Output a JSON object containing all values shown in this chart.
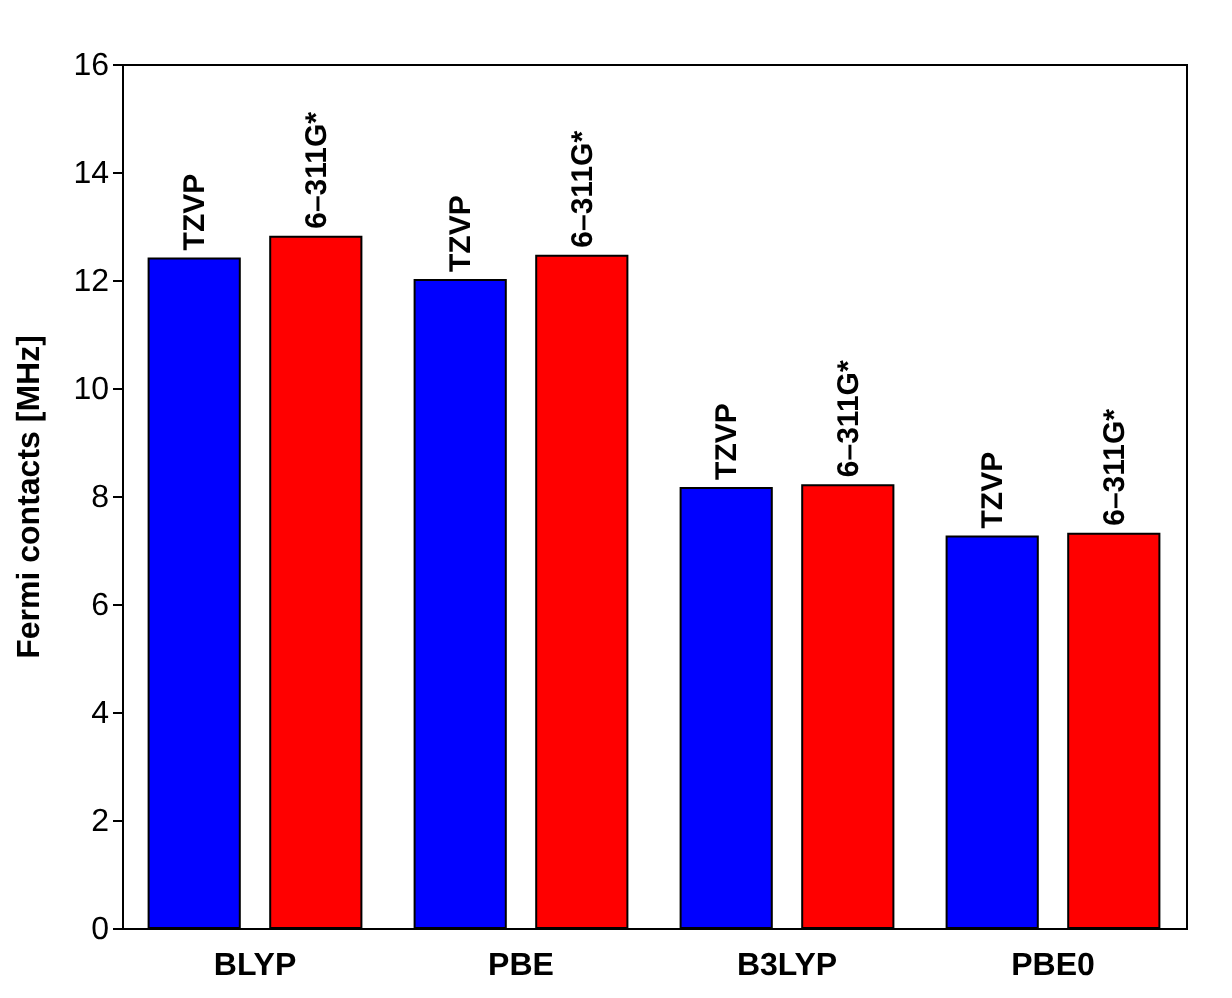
{
  "chart_data": {
    "type": "bar",
    "ylabel": "Fermi contacts [MHz]",
    "categories": [
      "BLYP",
      "PBE",
      "B3LYP",
      "PBE0"
    ],
    "series": [
      {
        "name": "TZVP",
        "color": "#0000ff",
        "values": [
          12.4,
          12.0,
          8.15,
          7.25
        ]
      },
      {
        "name": "6–311G*",
        "color": "#ff0000",
        "values": [
          12.8,
          12.45,
          8.2,
          7.3
        ]
      }
    ],
    "ylim": [
      0,
      16
    ],
    "yticks": [
      0,
      2,
      4,
      6,
      8,
      10,
      12,
      14,
      16
    ],
    "grid": false,
    "legend": false
  }
}
